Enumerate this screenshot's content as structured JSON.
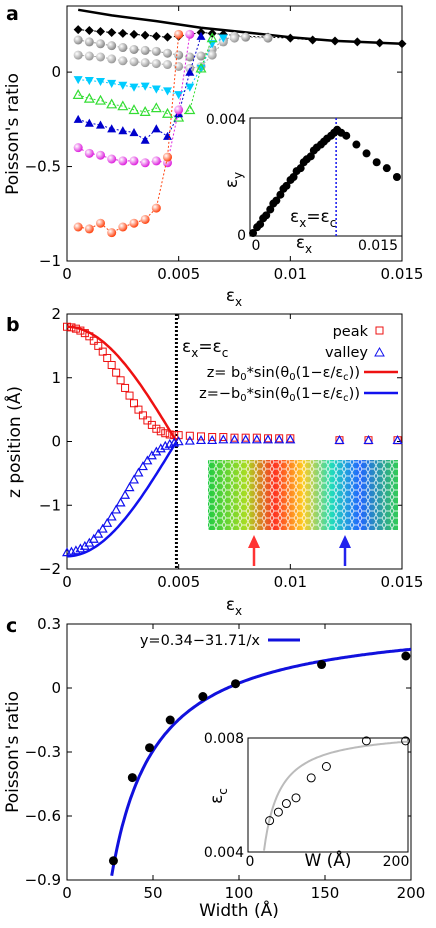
{
  "chart_data": [
    {
      "panel": "a",
      "type": "scatter",
      "xlabel": "ε_x",
      "ylabel": "Poisson's ratio",
      "xlim": [
        0,
        0.015
      ],
      "ylim": [
        -1,
        0.35
      ],
      "xticks": [
        0,
        0.005,
        0.01,
        0.015
      ],
      "xtick_labels": [
        "0",
        "0.005",
        "0.01",
        "0.015"
      ],
      "yticks": [
        -1,
        -0.5,
        0
      ],
      "ytick_labels": [
        "−1",
        "−0.5",
        "0"
      ],
      "series": [
        {
          "color": "#000000",
          "marker": "line",
          "x": [
            0.0005,
            0.002,
            0.004,
            0.006,
            0.008,
            0.01,
            0.012,
            0.014,
            0.015
          ],
          "y": [
            0.33,
            0.3,
            0.27,
            0.235,
            0.21,
            0.185,
            0.165,
            0.155,
            0.15
          ]
        },
        {
          "color": "#000000",
          "marker": "diamond",
          "x": [
            0.0005,
            0.001,
            0.0015,
            0.002,
            0.0025,
            0.003,
            0.0035,
            0.004,
            0.0045,
            0.005,
            0.0055,
            0.006,
            0.0065,
            0.007,
            0.0075,
            0.008,
            0.009,
            0.01,
            0.011,
            0.012,
            0.013,
            0.014,
            0.015
          ],
          "y": [
            0.225,
            0.22,
            0.215,
            0.21,
            0.205,
            0.2,
            0.195,
            0.19,
            0.185,
            0.19,
            0.2,
            0.21,
            0.205,
            0.2,
            0.195,
            0.19,
            0.185,
            0.18,
            0.17,
            0.165,
            0.16,
            0.155,
            0.15
          ]
        },
        {
          "color": "#999999",
          "marker": "sphere",
          "x": [
            0.0005,
            0.001,
            0.0015,
            0.002,
            0.0025,
            0.003,
            0.0035,
            0.004,
            0.0045,
            0.005,
            0.0055,
            0.006,
            0.0065,
            0.007,
            0.0075,
            0.008,
            0.009
          ],
          "y": [
            0.17,
            0.16,
            0.15,
            0.14,
            0.13,
            0.12,
            0.115,
            0.11,
            0.1,
            0.09,
            0.08,
            0.085,
            0.12,
            0.17,
            0.19,
            0.185,
            0.18
          ]
        },
        {
          "color": "#aaaaaa",
          "marker": "sphere",
          "x": [
            0.0005,
            0.001,
            0.0015,
            0.002,
            0.0025,
            0.003,
            0.0035,
            0.004,
            0.0045,
            0.005,
            0.0055,
            0.006,
            0.0065,
            0.007,
            0.0075
          ],
          "y": [
            0.09,
            0.085,
            0.08,
            0.07,
            0.06,
            0.055,
            0.05,
            0.045,
            0.04,
            0.03,
            0.02,
            0.03,
            0.09,
            0.16,
            0.18
          ]
        },
        {
          "color": "#00ccff",
          "marker": "triangle-down",
          "x": [
            0.0005,
            0.001,
            0.0015,
            0.002,
            0.0025,
            0.003,
            0.0035,
            0.004,
            0.0045,
            0.005,
            0.0055,
            0.006,
            0.0065,
            0.007
          ],
          "y": [
            -0.04,
            -0.045,
            -0.05,
            -0.06,
            -0.07,
            -0.08,
            -0.075,
            -0.09,
            -0.1,
            -0.12,
            -0.08,
            0.02,
            0.15,
            0.18
          ]
        },
        {
          "color": "#33dd33",
          "marker": "triangle-up-open",
          "x": [
            0.0005,
            0.001,
            0.0015,
            0.002,
            0.0025,
            0.003,
            0.0035,
            0.004,
            0.0045,
            0.005,
            0.0055,
            0.006,
            0.0065
          ],
          "y": [
            -0.12,
            -0.14,
            -0.15,
            -0.17,
            -0.18,
            -0.2,
            -0.21,
            -0.19,
            -0.22,
            -0.24,
            -0.2,
            0.02,
            0.18
          ]
        },
        {
          "color": "#0000cc",
          "marker": "triangle-up",
          "x": [
            0.0005,
            0.001,
            0.0015,
            0.002,
            0.0025,
            0.003,
            0.0035,
            0.004,
            0.0045,
            0.005,
            0.0055,
            0.006
          ],
          "y": [
            -0.25,
            -0.27,
            -0.28,
            -0.3,
            -0.31,
            -0.32,
            -0.36,
            -0.3,
            -0.34,
            -0.22,
            0.0,
            0.19
          ]
        },
        {
          "color": "#dd22dd",
          "marker": "sphere",
          "x": [
            0.0005,
            0.001,
            0.0015,
            0.002,
            0.0025,
            0.003,
            0.0035,
            0.004,
            0.0045,
            0.005,
            0.0055
          ],
          "y": [
            -0.4,
            -0.43,
            -0.44,
            -0.46,
            -0.47,
            -0.47,
            -0.48,
            -0.47,
            -0.48,
            -0.2,
            0.2
          ]
        },
        {
          "color": "#ff4411",
          "marker": "sphere",
          "x": [
            0.0005,
            0.001,
            0.0015,
            0.002,
            0.0025,
            0.003,
            0.0035,
            0.004,
            0.0045,
            0.005
          ],
          "y": [
            -0.82,
            -0.83,
            -0.8,
            -0.85,
            -0.82,
            -0.8,
            -0.78,
            -0.72,
            -0.45,
            0.2
          ]
        }
      ],
      "inset": {
        "type": "scatter",
        "xlabel": "ε_x",
        "ylabel": "ε_y",
        "xlim": [
          0,
          0.015
        ],
        "ylim": [
          0,
          0.004
        ],
        "xtick_labels": [
          "0",
          "0.015"
        ],
        "ytick_labels": [
          "0",
          "0.004"
        ],
        "annotation": "ε_x=ε_c",
        "critical_x": 0.0085,
        "x": [
          0.0003,
          0.0007,
          0.001,
          0.0013,
          0.0016,
          0.002,
          0.0023,
          0.0026,
          0.003,
          0.0033,
          0.0036,
          0.004,
          0.0043,
          0.0046,
          0.005,
          0.0053,
          0.0056,
          0.006,
          0.0063,
          0.0066,
          0.007,
          0.0073,
          0.0076,
          0.008,
          0.0083,
          0.0086,
          0.009,
          0.0095,
          0.0105,
          0.0115,
          0.0125,
          0.0135,
          0.0145
        ],
        "y": [
          0.0001,
          0.0003,
          0.0004,
          0.0006,
          0.0007,
          0.0009,
          0.0011,
          0.0012,
          0.0014,
          0.0016,
          0.0017,
          0.0019,
          0.002,
          0.0022,
          0.0023,
          0.0025,
          0.0026,
          0.0027,
          0.0029,
          0.003,
          0.0031,
          0.0032,
          0.0033,
          0.0034,
          0.0035,
          0.0036,
          0.0035,
          0.0034,
          0.0031,
          0.0028,
          0.0025,
          0.0023,
          0.002
        ]
      }
    },
    {
      "panel": "b",
      "type": "scatter",
      "xlabel": "ε_x",
      "ylabel": "z position (Å)",
      "xlim": [
        0,
        0.015
      ],
      "ylim": [
        -2,
        2
      ],
      "xticks": [
        0,
        0.005,
        0.01,
        0.015
      ],
      "xtick_labels": [
        "0",
        "0.005",
        "0.01",
        "0.015"
      ],
      "yticks": [
        -2,
        -1,
        0,
        1,
        2
      ],
      "ytick_labels": [
        "−2",
        "−1",
        "0",
        "1",
        "2"
      ],
      "annotation": "ε_x=ε_c",
      "critical_x": 0.0049,
      "legend": [
        "peak",
        "valley",
        "z=  b_0*sin(θ_0(1−ε/ε_c))",
        "z=−b_0*sin(θ_0(1−ε/ε_c))"
      ],
      "legend_position": "top-right",
      "b0": 1.8,
      "theta0": 1.5708,
      "eps_c": 0.0049,
      "peak_x": [
        0,
        0.0002,
        0.0004,
        0.0006,
        0.0008,
        0.001,
        0.0012,
        0.0014,
        0.0016,
        0.0018,
        0.002,
        0.0022,
        0.0024,
        0.0026,
        0.0028,
        0.003,
        0.0032,
        0.0034,
        0.0036,
        0.0038,
        0.004,
        0.0042,
        0.0044,
        0.0046,
        0.0048,
        0.005,
        0.0055,
        0.006,
        0.0065,
        0.007,
        0.0075,
        0.008,
        0.0085,
        0.009,
        0.0095,
        0.01,
        0.0122,
        0.0135,
        0.0148
      ],
      "peak_y": [
        1.8,
        1.79,
        1.77,
        1.74,
        1.7,
        1.65,
        1.58,
        1.5,
        1.41,
        1.31,
        1.2,
        1.08,
        0.96,
        0.84,
        0.72,
        0.6,
        0.5,
        0.41,
        0.33,
        0.26,
        0.2,
        0.16,
        0.13,
        0.11,
        0.1,
        0.1,
        0.09,
        0.08,
        0.07,
        0.07,
        0.06,
        0.06,
        0.06,
        0.05,
        0.05,
        0.05,
        0.02,
        0.02,
        0.02
      ],
      "valley_x": [
        0,
        0.0002,
        0.0004,
        0.0006,
        0.0008,
        0.001,
        0.0012,
        0.0014,
        0.0016,
        0.0018,
        0.002,
        0.0022,
        0.0024,
        0.0026,
        0.0028,
        0.003,
        0.0032,
        0.0034,
        0.0036,
        0.0038,
        0.004,
        0.0042,
        0.0044,
        0.0046,
        0.0048,
        0.005,
        0.0055,
        0.006,
        0.0065,
        0.007,
        0.0075,
        0.008,
        0.0085,
        0.009,
        0.0095,
        0.01,
        0.0122,
        0.0135,
        0.0148
      ],
      "valley_y": [
        -1.74,
        -1.73,
        -1.71,
        -1.68,
        -1.64,
        -1.59,
        -1.53,
        -1.45,
        -1.37,
        -1.28,
        -1.18,
        -1.07,
        -0.96,
        -0.84,
        -0.72,
        -0.6,
        -0.49,
        -0.39,
        -0.3,
        -0.22,
        -0.16,
        -0.11,
        -0.07,
        -0.04,
        -0.02,
        0.0,
        0.01,
        0.02,
        0.02,
        0.03,
        0.03,
        0.03,
        0.03,
        0.03,
        0.03,
        0.03,
        0.02,
        0.02,
        0.02
      ],
      "fit_colors": [
        "#ee1111",
        "#1111ee"
      ],
      "arrow_colors": [
        "#ff3333",
        "#2222ee"
      ]
    },
    {
      "panel": "c",
      "type": "scatter",
      "xlabel": "Width (Å)",
      "ylabel": "Poisson's ratio",
      "xlim": [
        0,
        200
      ],
      "ylim": [
        -0.9,
        0.3
      ],
      "xticks": [
        0,
        50,
        100,
        150,
        200
      ],
      "xtick_labels": [
        "0",
        "50",
        "100",
        "150",
        "200"
      ],
      "yticks": [
        -0.9,
        -0.6,
        -0.3,
        0,
        0.3
      ],
      "ytick_labels": [
        "−0.9",
        "−0.6",
        "−0.3",
        "0",
        "0.3"
      ],
      "legend": [
        "y=0.34−31.71/x"
      ],
      "fit": {
        "a": 0.34,
        "b": -31.71
      },
      "x": [
        27,
        38,
        48,
        60,
        79,
        98,
        148,
        197
      ],
      "y": [
        -0.81,
        -0.42,
        -0.28,
        -0.15,
        -0.04,
        0.02,
        0.11,
        0.15
      ],
      "inset": {
        "type": "scatter",
        "xlabel": "W (Å)",
        "ylabel": "ε_c",
        "xlim": [
          0,
          200
        ],
        "ylim": [
          0.004,
          0.008
        ],
        "xtick_labels": [
          "0",
          "200"
        ],
        "ytick_labels": [
          "0.004",
          "0.008"
        ],
        "x": [
          27,
          38,
          48,
          60,
          79,
          98,
          148,
          197
        ],
        "y": [
          0.0051,
          0.0054,
          0.0057,
          0.0059,
          0.0066,
          0.007,
          0.0079,
          0.0079
        ]
      }
    }
  ],
  "panel_labels": {
    "a": "a",
    "b": "b",
    "c": "c"
  }
}
